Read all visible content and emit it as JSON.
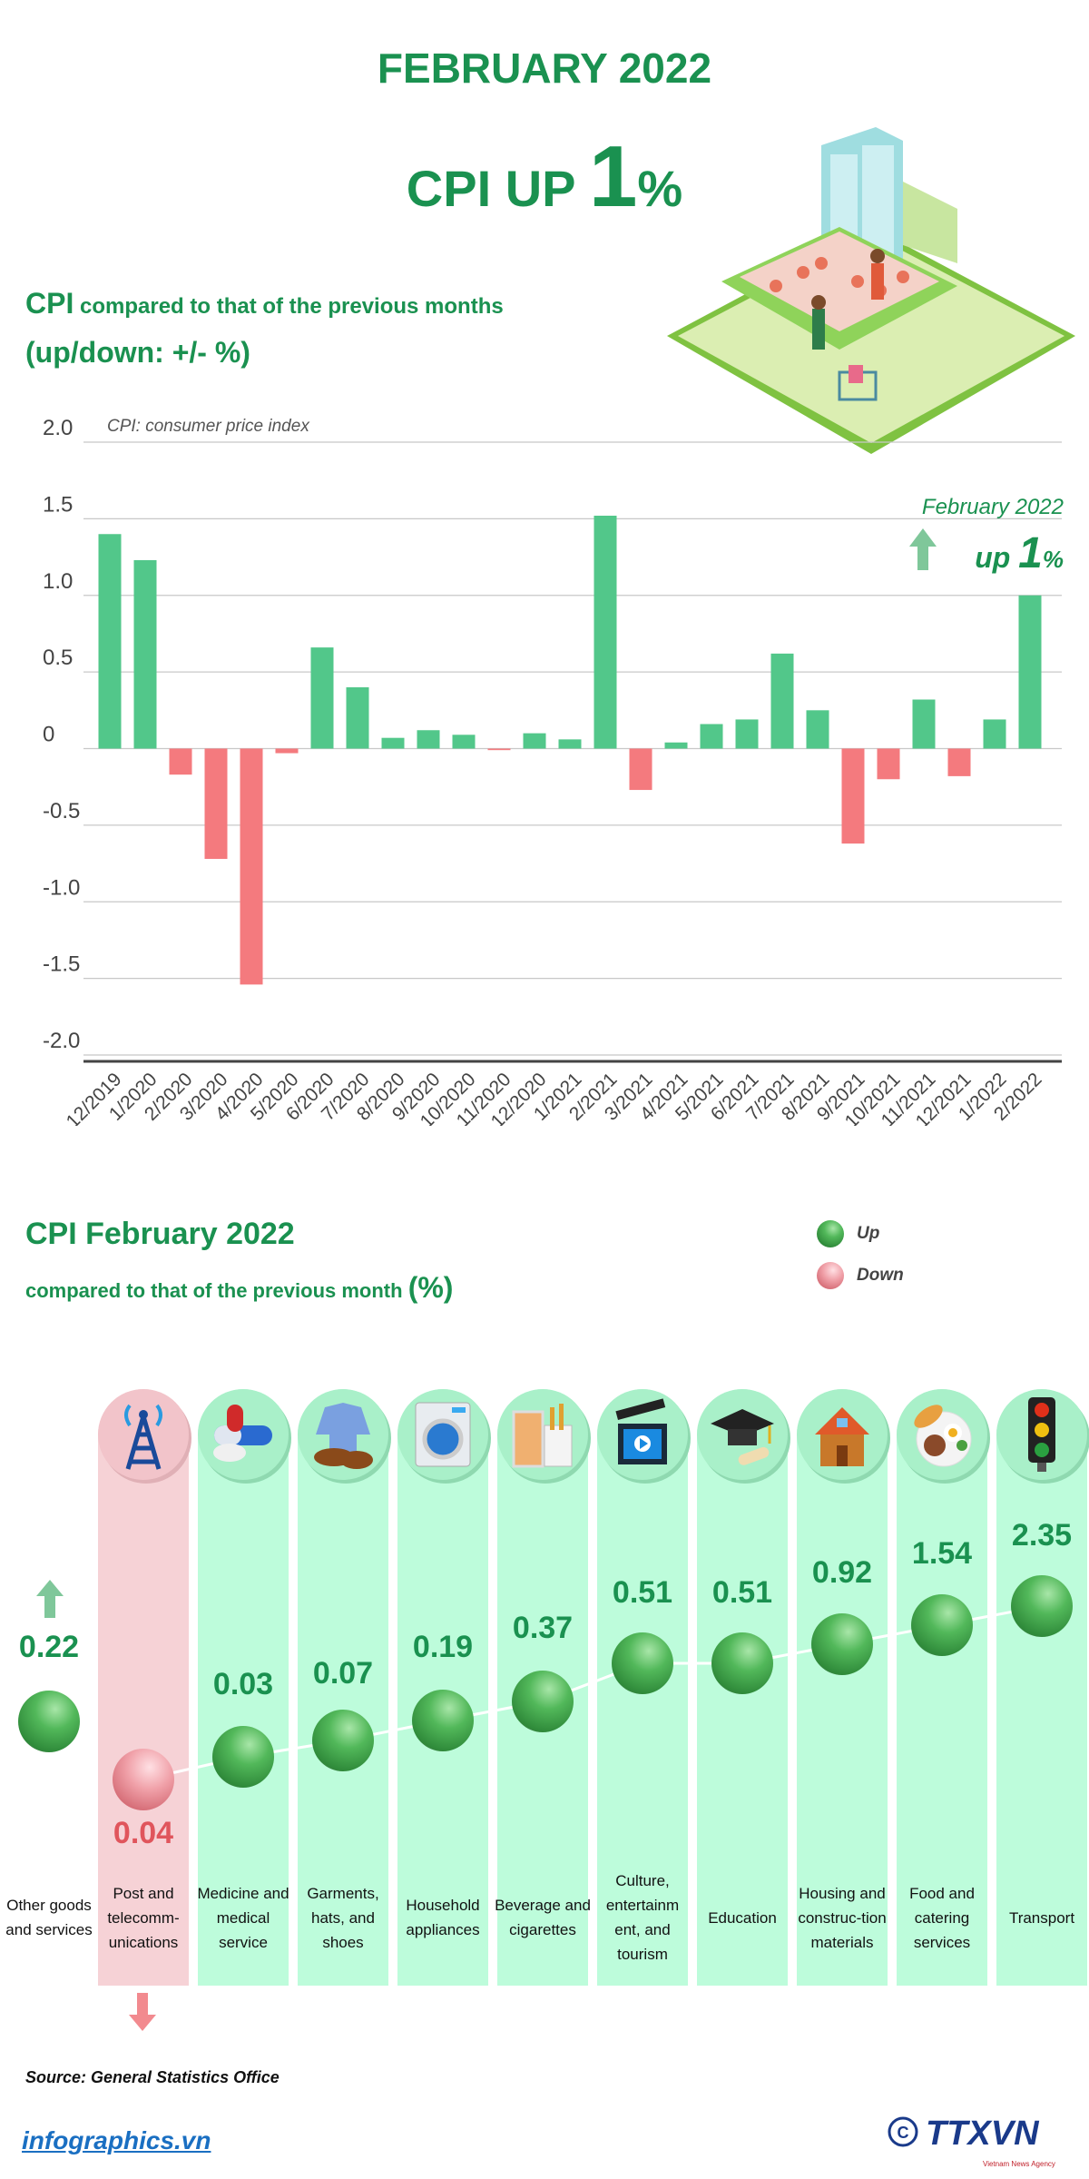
{
  "header": {
    "month_title": "FEBRUARY 2022",
    "headline_prefix": "CPI UP ",
    "headline_number": "1",
    "headline_suffix": "%"
  },
  "section1": {
    "title_main": "CPI",
    "title_rest": " compared to that of the previous months",
    "subtitle": "(up/down: +/- %)",
    "annotation_month": "February 2022",
    "annotation_up": "up ",
    "annotation_number": "1",
    "annotation_suffix": "%"
  },
  "chart_data": {
    "type": "bar",
    "title": "",
    "note": "CPI: consumer price index",
    "xlabel": "",
    "ylabel": "",
    "ylim": [
      -2.0,
      2.0
    ],
    "yticks": [
      "2.0",
      "1.5",
      "1.0",
      "0.5",
      "0",
      "-0.5",
      "-1.0",
      "-1.5",
      "-2.0"
    ],
    "grid": true,
    "categories": [
      "12/2019",
      "1/2020",
      "2/2020",
      "3/2020",
      "4/2020",
      "5/2020",
      "6/2020",
      "7/2020",
      "8/2020",
      "9/2020",
      "10/2020",
      "11/2020",
      "12/2020",
      "1/2021",
      "2/2021",
      "3/2021",
      "4/2021",
      "5/2021",
      "6/2021",
      "7/2021",
      "8/2021",
      "9/2021",
      "10/2021",
      "11/2021",
      "12/2021",
      "1/2022",
      "2/2022"
    ],
    "values": [
      1.4,
      1.23,
      -0.17,
      -0.72,
      -1.54,
      -0.03,
      0.66,
      0.4,
      0.07,
      0.12,
      0.09,
      -0.01,
      0.1,
      0.06,
      1.52,
      -0.27,
      0.04,
      0.16,
      0.19,
      0.62,
      0.25,
      -0.62,
      -0.2,
      0.32,
      -0.18,
      0.19,
      1.0
    ],
    "colors": {
      "up": "#52c78a",
      "down": "#f47a7e"
    }
  },
  "section2": {
    "title": "CPI February 2022",
    "subtitle": "compared to that of the previous month ",
    "subtitle_unit": "(%)",
    "legend": [
      {
        "label": "Up",
        "color": "#3fa84a"
      },
      {
        "label": "Down",
        "color": "#f0a0a8"
      }
    ],
    "groups": [
      {
        "label": "Other goods and services",
        "value": "0.22",
        "direction": "up",
        "icon": "none"
      },
      {
        "label": "Post and telecomm-unications",
        "value": "0.04",
        "direction": "down",
        "icon": "antenna-tower-icon"
      },
      {
        "label": "Medicine and medical service",
        "value": "0.03",
        "direction": "up",
        "icon": "pill-icon"
      },
      {
        "label": "Garments, hats, and shoes",
        "value": "0.07",
        "direction": "up",
        "icon": "shirt-shoes-icon"
      },
      {
        "label": "Household appliances",
        "value": "0.19",
        "direction": "up",
        "icon": "washing-machine-icon"
      },
      {
        "label": "Beverage and cigarettes",
        "value": "0.37",
        "direction": "up",
        "icon": "drink-cigarettes-icon"
      },
      {
        "label": "Culture, entertainm ent, and tourism",
        "value": "0.51",
        "direction": "up",
        "icon": "clapperboard-icon"
      },
      {
        "label": "Education",
        "value": "0.51",
        "direction": "up",
        "icon": "graduation-cap-icon"
      },
      {
        "label": "Housing and construc-tion materials",
        "value": "0.92",
        "direction": "up",
        "icon": "house-icon"
      },
      {
        "label": "Food and catering services",
        "value": "1.54",
        "direction": "up",
        "icon": "food-plate-icon"
      },
      {
        "label": "Transport",
        "value": "2.35",
        "direction": "up",
        "icon": "traffic-light-icon"
      }
    ]
  },
  "footer": {
    "source": "Source: General Statistics Office",
    "site": "infographics.vn",
    "logo_text": "TTXVN",
    "logo_subtext": "Vietnam News Agency"
  }
}
